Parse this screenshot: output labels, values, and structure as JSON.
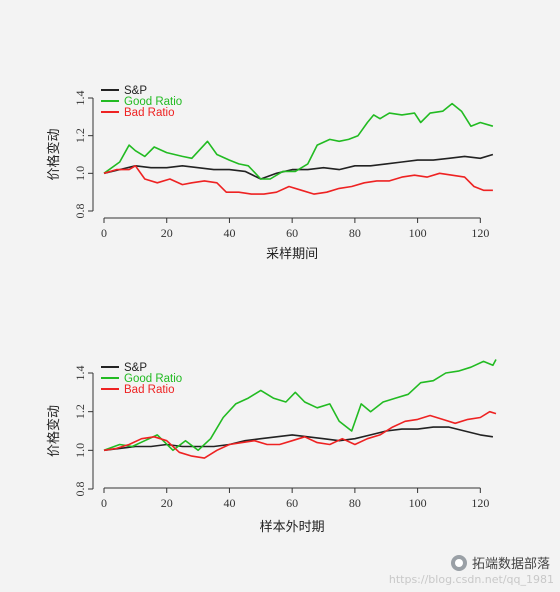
{
  "chart_data": [
    {
      "type": "line",
      "xlabel": "采样期间",
      "ylabel": "价格变动",
      "xlim": [
        0,
        125
      ],
      "ylim": [
        0.8,
        1.45
      ],
      "xticks": [
        0,
        20,
        40,
        60,
        80,
        100,
        120
      ],
      "yticks": [
        0.8,
        1.0,
        1.2,
        1.4
      ],
      "ytick_labels": [
        "0.8",
        "1.0",
        "1.2",
        "1.4"
      ],
      "grid": false,
      "legend_position": "top-left",
      "series": [
        {
          "name": "S&P",
          "color": "#222222",
          "x": [
            0,
            5,
            10,
            15,
            20,
            25,
            30,
            35,
            40,
            45,
            50,
            55,
            60,
            65,
            70,
            75,
            80,
            85,
            90,
            95,
            100,
            105,
            110,
            115,
            120,
            124
          ],
          "y": [
            1.0,
            1.02,
            1.04,
            1.03,
            1.03,
            1.04,
            1.03,
            1.02,
            1.02,
            1.01,
            0.97,
            1.0,
            1.02,
            1.02,
            1.03,
            1.02,
            1.04,
            1.04,
            1.05,
            1.06,
            1.07,
            1.07,
            1.08,
            1.09,
            1.08,
            1.1
          ]
        },
        {
          "name": "Good Ratio",
          "color": "#22bb22",
          "x": [
            0,
            5,
            8,
            10,
            13,
            16,
            20,
            25,
            28,
            33,
            36,
            40,
            43,
            46,
            50,
            53,
            57,
            61,
            65,
            68,
            72,
            75,
            78,
            81,
            84,
            86,
            88,
            91,
            95,
            99,
            101,
            104,
            108,
            111,
            114,
            117,
            120,
            124
          ],
          "y": [
            1.0,
            1.06,
            1.15,
            1.12,
            1.09,
            1.14,
            1.11,
            1.09,
            1.08,
            1.17,
            1.1,
            1.07,
            1.05,
            1.04,
            0.97,
            0.97,
            1.01,
            1.01,
            1.05,
            1.15,
            1.18,
            1.17,
            1.18,
            1.2,
            1.27,
            1.31,
            1.29,
            1.32,
            1.31,
            1.32,
            1.27,
            1.32,
            1.33,
            1.37,
            1.33,
            1.25,
            1.27,
            1.25
          ]
        },
        {
          "name": "Bad Ratio",
          "color": "#ee2222",
          "x": [
            0,
            4,
            8,
            10,
            13,
            17,
            21,
            25,
            28,
            32,
            36,
            39,
            43,
            47,
            51,
            55,
            59,
            63,
            67,
            71,
            75,
            79,
            83,
            87,
            91,
            95,
            99,
            103,
            107,
            111,
            115,
            118,
            121,
            124
          ],
          "y": [
            1.0,
            1.02,
            1.02,
            1.04,
            0.97,
            0.95,
            0.97,
            0.94,
            0.95,
            0.96,
            0.95,
            0.9,
            0.9,
            0.89,
            0.89,
            0.9,
            0.93,
            0.91,
            0.89,
            0.9,
            0.92,
            0.93,
            0.95,
            0.96,
            0.96,
            0.98,
            0.99,
            0.98,
            1.0,
            0.99,
            0.98,
            0.93,
            0.91,
            0.91
          ]
        }
      ]
    },
    {
      "type": "line",
      "xlabel": "样本外时期",
      "ylabel": "价格变动",
      "xlim": [
        0,
        125
      ],
      "ylim": [
        0.8,
        1.5
      ],
      "xticks": [
        0,
        20,
        40,
        60,
        80,
        100,
        120
      ],
      "yticks": [
        0.8,
        1.0,
        1.2,
        1.4
      ],
      "ytick_labels": [
        "0.8",
        "1.0",
        "1.2",
        "1.4"
      ],
      "grid": false,
      "legend_position": "top-left",
      "series": [
        {
          "name": "S&P",
          "color": "#222222",
          "x": [
            0,
            5,
            10,
            15,
            20,
            25,
            30,
            35,
            40,
            45,
            50,
            55,
            60,
            65,
            70,
            75,
            80,
            85,
            90,
            95,
            100,
            105,
            110,
            115,
            120,
            124
          ],
          "y": [
            1.0,
            1.01,
            1.02,
            1.02,
            1.03,
            1.02,
            1.02,
            1.02,
            1.03,
            1.05,
            1.06,
            1.07,
            1.08,
            1.07,
            1.06,
            1.05,
            1.06,
            1.08,
            1.1,
            1.11,
            1.11,
            1.12,
            1.12,
            1.1,
            1.08,
            1.07
          ]
        },
        {
          "name": "Good Ratio",
          "color": "#22bb22",
          "x": [
            0,
            5,
            9,
            13,
            17,
            22,
            26,
            30,
            34,
            38,
            42,
            46,
            50,
            54,
            58,
            61,
            64,
            68,
            72,
            75,
            79,
            82,
            85,
            89,
            93,
            97,
            101,
            105,
            109,
            113,
            117,
            121,
            124,
            125
          ],
          "y": [
            1.0,
            1.03,
            1.02,
            1.05,
            1.08,
            1.0,
            1.05,
            1.0,
            1.06,
            1.17,
            1.24,
            1.27,
            1.31,
            1.27,
            1.25,
            1.3,
            1.25,
            1.22,
            1.24,
            1.15,
            1.1,
            1.24,
            1.2,
            1.25,
            1.27,
            1.29,
            1.35,
            1.36,
            1.4,
            1.41,
            1.43,
            1.46,
            1.44,
            1.47
          ]
        },
        {
          "name": "Bad Ratio",
          "color": "#ee2222",
          "x": [
            0,
            4,
            8,
            12,
            16,
            20,
            24,
            28,
            32,
            36,
            40,
            44,
            48,
            52,
            56,
            60,
            64,
            68,
            72,
            76,
            80,
            84,
            88,
            92,
            96,
            100,
            104,
            108,
            112,
            116,
            120,
            123,
            125
          ],
          "y": [
            1.0,
            1.01,
            1.03,
            1.06,
            1.07,
            1.05,
            0.99,
            0.97,
            0.96,
            1.0,
            1.03,
            1.04,
            1.05,
            1.03,
            1.03,
            1.05,
            1.07,
            1.04,
            1.03,
            1.06,
            1.03,
            1.06,
            1.08,
            1.12,
            1.15,
            1.16,
            1.18,
            1.16,
            1.14,
            1.16,
            1.17,
            1.2,
            1.19
          ]
        }
      ]
    }
  ],
  "watermark": {
    "url_text": "https://blog.csdn.net/qq_1981",
    "logo_text": "拓端数据部落",
    "logo_icon": "chat-bubble-icon"
  }
}
